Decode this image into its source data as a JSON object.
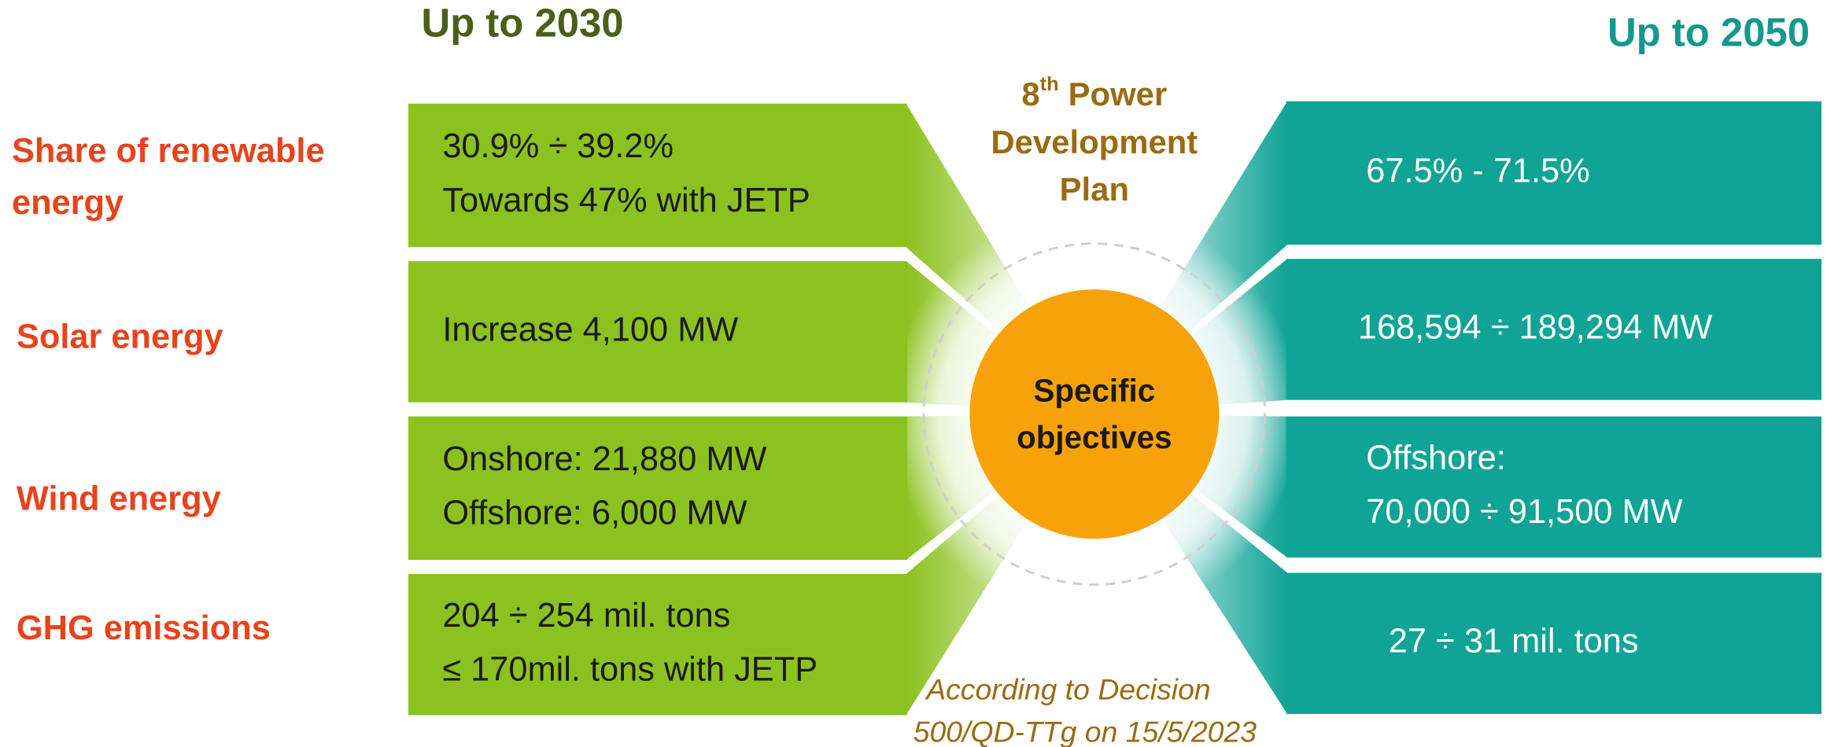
{
  "header_2030": "Up to 2030",
  "header_2050": "Up to 2050",
  "plan_title": {
    "number": "8",
    "suffix": "th",
    "lines": [
      "Power",
      "Development",
      "Plan"
    ]
  },
  "center": [
    "Specific",
    "objectives"
  ],
  "note": [
    "According to Decision",
    "500/QD-TTg on 15/5/2023"
  ],
  "rows": [
    {
      "label": [
        "Share of renewable",
        "energy"
      ],
      "y2030": [
        "30.9% ÷ 39.2%",
        "Towards 47% with JETP"
      ],
      "y2050": [
        "67.5% - 71.5%"
      ]
    },
    {
      "label": [
        "Solar energy"
      ],
      "y2030": [
        "Increase 4,100 MW"
      ],
      "y2050": [
        "168,594 ÷ 189,294 MW"
      ]
    },
    {
      "label": [
        "Wind energy"
      ],
      "y2030": [
        "Onshore: 21,880 MW",
        "Offshore:  6,000 MW"
      ],
      "y2050": [
        "Offshore:",
        "70,000 ÷ 91,500 MW"
      ]
    },
    {
      "label": [
        "GHG emissions"
      ],
      "y2030": [
        "204 ÷ 254 mil. tons",
        "≤ 170mil. tons with JETP"
      ],
      "y2050": [
        "27 ÷ 31 mil. tons"
      ]
    }
  ]
}
